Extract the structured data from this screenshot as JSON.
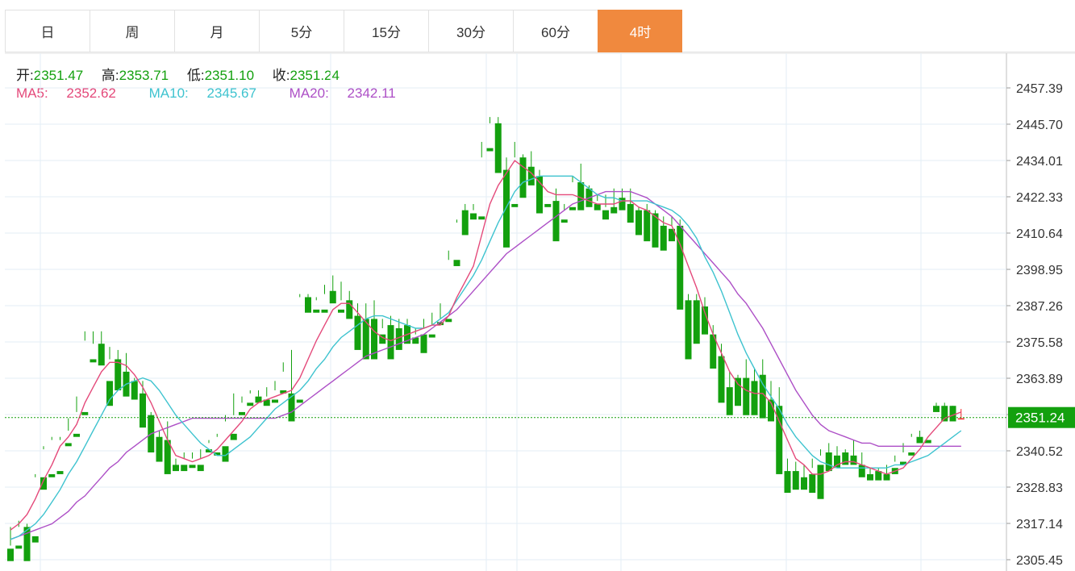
{
  "tabs": [
    {
      "label": "日",
      "active": false
    },
    {
      "label": "周",
      "active": false
    },
    {
      "label": "月",
      "active": false
    },
    {
      "label": "5分",
      "active": false
    },
    {
      "label": "15分",
      "active": false
    },
    {
      "label": "30分",
      "active": false
    },
    {
      "label": "60分",
      "active": false
    },
    {
      "label": "4时",
      "active": true
    }
  ],
  "ohlc": {
    "open_label": "开:",
    "open": "2351.47",
    "high_label": "高:",
    "high": "2353.71",
    "low_label": "低:",
    "low": "2351.10",
    "close_label": "收:",
    "close": "2351.24"
  },
  "ma": {
    "ma5_label": "MA5:",
    "ma5": "2352.62",
    "ma10_label": "MA10:",
    "ma10": "2345.67",
    "ma20_label": "MA20:",
    "ma20": "2342.11"
  },
  "colors": {
    "up": "#f22323",
    "down": "#13a00e",
    "ma5": "#e4497a",
    "ma10": "#3ec3cf",
    "ma20": "#ad4fc6",
    "active_tab": "#f0893e",
    "grid": "#e3edf6",
    "price_tag": "#13a00e"
  },
  "chart_data": {
    "type": "candlestick",
    "current_price": 2351.24,
    "y_ticks": [
      2457.39,
      2445.7,
      2434.01,
      2422.33,
      2410.64,
      2398.95,
      2387.26,
      2375.58,
      2363.89,
      2352.2,
      2340.52,
      2328.83,
      2317.14,
      2305.45
    ],
    "ylim": [
      2305.45,
      2457.39
    ],
    "candles": [
      [
        2309,
        2316,
        2310,
        2305
      ],
      [
        2310,
        2318,
        2316,
        2309
      ],
      [
        2316,
        2317,
        2307,
        2305
      ],
      [
        2313,
        2333,
        2332,
        2311
      ],
      [
        2332,
        2342,
        2341,
        2328
      ],
      [
        2333,
        2345,
        2344,
        2332
      ],
      [
        2334,
        2345,
        2344,
        2333
      ],
      [
        2343,
        2351,
        2347,
        2342
      ],
      [
        2346,
        2358,
        2353,
        2345
      ],
      [
        2353,
        2379,
        2376,
        2352
      ],
      [
        2370,
        2379,
        2375,
        2369
      ],
      [
        2375,
        2379,
        2370,
        2368
      ],
      [
        2363,
        2374,
        2370,
        2355
      ],
      [
        2370,
        2373,
        2363,
        2360
      ],
      [
        2366,
        2372,
        2363,
        2358
      ],
      [
        2363,
        2364,
        2359,
        2357
      ],
      [
        2359,
        2363,
        2350,
        2348
      ],
      [
        2352,
        2353,
        2341,
        2340
      ],
      [
        2345,
        2347,
        2339,
        2337
      ],
      [
        2344,
        2350,
        2340,
        2333
      ],
      [
        2336,
        2338,
        2335,
        2334
      ],
      [
        2336,
        2338,
        2340,
        2334
      ],
      [
        2336,
        2340,
        2338,
        2335
      ],
      [
        2336,
        2341,
        2338,
        2334
      ],
      [
        2341,
        2344,
        2343,
        2340
      ],
      [
        2340,
        2345,
        2346,
        2339
      ],
      [
        2342,
        2352,
        2350,
        2337
      ],
      [
        2346,
        2359,
        2352,
        2344
      ],
      [
        2353,
        2358,
        2356,
        2352
      ],
      [
        2356,
        2360,
        2359,
        2355
      ],
      [
        2358,
        2360,
        2358,
        2356
      ],
      [
        2357,
        2361,
        2358,
        2355
      ],
      [
        2357,
        2363,
        2360,
        2356
      ],
      [
        2360,
        2366,
        2369,
        2359
      ],
      [
        2359,
        2373,
        2357,
        2350
      ],
      [
        2357,
        2391,
        2390,
        2356
      ],
      [
        2390,
        2391,
        2386,
        2385
      ],
      [
        2386,
        2390,
        2389,
        2385
      ],
      [
        2386,
        2394,
        2391,
        2385
      ],
      [
        2392,
        2397,
        2390,
        2388
      ],
      [
        2386,
        2395,
        2389,
        2385
      ],
      [
        2389,
        2392,
        2384,
        2383
      ],
      [
        2384,
        2388,
        2377,
        2373
      ],
      [
        2383,
        2388,
        2372,
        2370
      ],
      [
        2383,
        2389,
        2373,
        2370
      ],
      [
        2378,
        2383,
        2380,
        2375
      ],
      [
        2381,
        2384,
        2376,
        2370
      ],
      [
        2380,
        2383,
        2376,
        2373
      ],
      [
        2381,
        2383,
        2377,
        2375
      ],
      [
        2377,
        2380,
        2378,
        2375
      ],
      [
        2378,
        2383,
        2380,
        2372
      ],
      [
        2378,
        2385,
        2381,
        2377
      ],
      [
        2382,
        2388,
        2383,
        2381
      ],
      [
        2383,
        2405,
        2402,
        2382
      ],
      [
        2402,
        2415,
        2414,
        2400
      ],
      [
        2418,
        2420,
        2417,
        2410
      ],
      [
        2417,
        2420,
        2418,
        2415
      ],
      [
        2416,
        2440,
        2435,
        2415
      ],
      [
        2438,
        2448,
        2446,
        2437
      ],
      [
        2446,
        2448,
        2434,
        2430
      ],
      [
        2431,
        2435,
        2420,
        2406
      ],
      [
        2420,
        2440,
        2435,
        2419
      ],
      [
        2435,
        2436,
        2427,
        2422
      ],
      [
        2432,
        2437,
        2427,
        2426
      ],
      [
        2429,
        2431,
        2420,
        2417
      ],
      [
        2420,
        2426,
        2426,
        2419
      ],
      [
        2421,
        2425,
        2416,
        2408
      ],
      [
        2415,
        2420,
        2418,
        2414
      ],
      [
        2419,
        2429,
        2427,
        2418
      ],
      [
        2427,
        2433,
        2419,
        2418
      ],
      [
        2425,
        2426,
        2422,
        2419
      ],
      [
        2420,
        2423,
        2421,
        2418
      ],
      [
        2418,
        2423,
        2419,
        2415
      ],
      [
        2419,
        2425,
        2418,
        2417
      ],
      [
        2422,
        2425,
        2420,
        2418
      ],
      [
        2420,
        2425,
        2417,
        2414
      ],
      [
        2418,
        2419,
        2416,
        2410
      ],
      [
        2418,
        2420,
        2413,
        2408
      ],
      [
        2417,
        2418,
        2410,
        2406
      ],
      [
        2413,
        2416,
        2410,
        2405
      ],
      [
        2412,
        2416,
        2413,
        2408
      ],
      [
        2413,
        2415,
        2388,
        2386
      ],
      [
        2389,
        2391,
        2378,
        2370
      ],
      [
        2389,
        2391,
        2378,
        2375
      ],
      [
        2387,
        2390,
        2381,
        2378
      ],
      [
        2378,
        2381,
        2372,
        2367
      ],
      [
        2371,
        2375,
        2358,
        2356
      ],
      [
        2361,
        2366,
        2356,
        2352
      ],
      [
        2364,
        2365,
        2359,
        2355
      ],
      [
        2364,
        2370,
        2359,
        2352
      ],
      [
        2363,
        2367,
        2354,
        2352
      ],
      [
        2365,
        2370,
        2358,
        2351
      ],
      [
        2357,
        2363,
        2354,
        2350
      ],
      [
        2355,
        2361,
        2334,
        2333
      ],
      [
        2334,
        2338,
        2329,
        2327
      ],
      [
        2334,
        2337,
        2329,
        2328
      ],
      [
        2332,
        2336,
        2330,
        2328
      ],
      [
        2333,
        2338,
        2335,
        2327
      ],
      [
        2336,
        2341,
        2339,
        2325
      ],
      [
        2340,
        2343,
        2336,
        2334
      ],
      [
        2339,
        2342,
        2339,
        2335
      ],
      [
        2340,
        2341,
        2339,
        2336
      ],
      [
        2339,
        2344,
        2337,
        2336
      ],
      [
        2336,
        2340,
        2333,
        2332
      ],
      [
        2333,
        2335,
        2333,
        2331
      ],
      [
        2334,
        2335,
        2332,
        2331
      ],
      [
        2333,
        2336,
        2332,
        2331
      ],
      [
        2335,
        2339,
        2337,
        2333
      ],
      [
        2337,
        2343,
        2340,
        2336
      ],
      [
        2340,
        2346,
        2345,
        2339
      ],
      [
        2345,
        2347,
        2345,
        2343
      ],
      [
        2344,
        2355,
        2355,
        2343
      ],
      [
        2355,
        2356,
        2355,
        2353
      ],
      [
        2355,
        2356,
        2353,
        2350
      ],
      [
        2355,
        2355,
        2351,
        2350
      ],
      [
        2351,
        2354,
        2351,
        2351
      ]
    ],
    "ma5": [
      2315,
      2317,
      2320,
      2325,
      2331,
      2336,
      2342,
      2345,
      2349,
      2356,
      2361,
      2366,
      2369,
      2369,
      2368,
      2365,
      2361,
      2356,
      2350,
      2344,
      2339,
      2338,
      2337,
      2338,
      2339,
      2341,
      2344,
      2347,
      2350,
      2354,
      2356,
      2357,
      2358,
      2359,
      2360,
      2364,
      2370,
      2376,
      2381,
      2386,
      2388,
      2388,
      2385,
      2382,
      2379,
      2377,
      2376,
      2377,
      2378,
      2379,
      2380,
      2381,
      2381,
      2384,
      2390,
      2395,
      2400,
      2410,
      2420,
      2426,
      2430,
      2434,
      2432,
      2430,
      2427,
      2424,
      2423,
      2423,
      2423,
      2422,
      2421,
      2420,
      2420,
      2420,
      2421,
      2421,
      2419,
      2418,
      2416,
      2414,
      2413,
      2407,
      2400,
      2393,
      2385,
      2378,
      2372,
      2366,
      2362,
      2360,
      2359,
      2359,
      2356,
      2350,
      2344,
      2338,
      2336,
      2333,
      2333,
      2334,
      2336,
      2337,
      2337,
      2336,
      2335,
      2334,
      2333,
      2334,
      2335,
      2338,
      2341,
      2345,
      2348,
      2351,
      2352,
      2353
    ],
    "ma10": [
      2312,
      2313,
      2315,
      2317,
      2320,
      2324,
      2328,
      2333,
      2337,
      2342,
      2347,
      2352,
      2357,
      2360,
      2362,
      2363,
      2364,
      2363,
      2360,
      2356,
      2352,
      2349,
      2346,
      2343,
      2341,
      2339,
      2339,
      2341,
      2343,
      2345,
      2348,
      2351,
      2354,
      2356,
      2358,
      2360,
      2363,
      2367,
      2370,
      2374,
      2377,
      2379,
      2381,
      2383,
      2384,
      2384,
      2383,
      2382,
      2381,
      2380,
      2380,
      2381,
      2383,
      2385,
      2389,
      2393,
      2397,
      2402,
      2408,
      2414,
      2419,
      2424,
      2427,
      2428,
      2429,
      2429,
      2429,
      2429,
      2429,
      2427,
      2425,
      2423,
      2422,
      2422,
      2421,
      2421,
      2421,
      2421,
      2420,
      2419,
      2418,
      2416,
      2413,
      2409,
      2403,
      2398,
      2392,
      2385,
      2378,
      2372,
      2367,
      2362,
      2358,
      2354,
      2349,
      2345,
      2342,
      2339,
      2337,
      2336,
      2335,
      2335,
      2335,
      2335,
      2335,
      2335,
      2335,
      2336,
      2336,
      2337,
      2338,
      2339,
      2341,
      2343,
      2345,
      2347
    ],
    "ma20": [
      2312,
      2313,
      2314,
      2315,
      2316,
      2317,
      2319,
      2321,
      2324,
      2326,
      2329,
      2332,
      2335,
      2337,
      2340,
      2342,
      2344,
      2346,
      2347,
      2348,
      2349,
      2350,
      2351,
      2351,
      2351,
      2351,
      2351,
      2351,
      2351,
      2351,
      2351,
      2351,
      2351,
      2352,
      2353,
      2355,
      2357,
      2359,
      2361,
      2363,
      2365,
      2367,
      2369,
      2371,
      2372,
      2373,
      2374,
      2375,
      2376,
      2377,
      2378,
      2380,
      2382,
      2384,
      2386,
      2389,
      2392,
      2395,
      2398,
      2401,
      2404,
      2406,
      2408,
      2410,
      2412,
      2414,
      2416,
      2418,
      2420,
      2421,
      2422,
      2423,
      2424,
      2424,
      2424,
      2424,
      2423,
      2422,
      2420,
      2418,
      2416,
      2413,
      2410,
      2407,
      2404,
      2401,
      2398,
      2395,
      2391,
      2388,
      2384,
      2380,
      2375,
      2370,
      2365,
      2360,
      2356,
      2352,
      2349,
      2347,
      2346,
      2345,
      2344,
      2343,
      2343,
      2342,
      2342,
      2342,
      2342,
      2342,
      2342,
      2342,
      2342,
      2342,
      2342,
      2342
    ]
  }
}
